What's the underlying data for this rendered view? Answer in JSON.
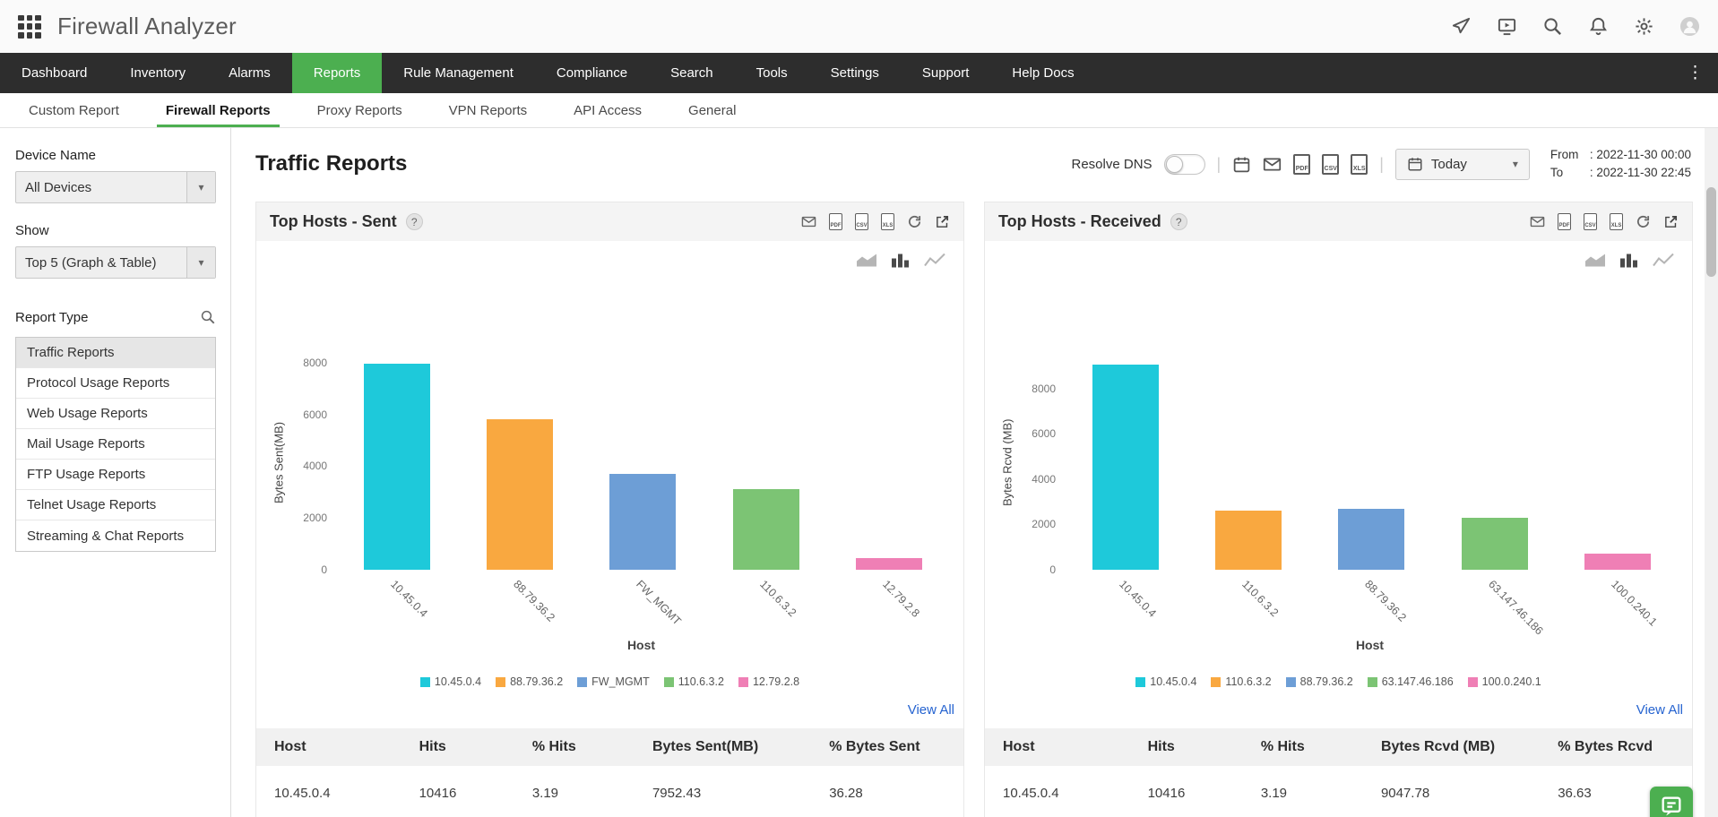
{
  "app": {
    "title": "Firewall Analyzer"
  },
  "icons": {
    "caret_down": "▾",
    "kebab": "⋮",
    "help": "?",
    "pdf_label": "PDF",
    "csv_label": "CSV",
    "xls_label": "XLS"
  },
  "nav": {
    "items": [
      {
        "label": "Dashboard",
        "active": false
      },
      {
        "label": "Inventory",
        "active": false
      },
      {
        "label": "Alarms",
        "active": false
      },
      {
        "label": "Reports",
        "active": true
      },
      {
        "label": "Rule Management",
        "active": false
      },
      {
        "label": "Compliance",
        "active": false
      },
      {
        "label": "Search",
        "active": false
      },
      {
        "label": "Tools",
        "active": false
      },
      {
        "label": "Settings",
        "active": false
      },
      {
        "label": "Support",
        "active": false
      },
      {
        "label": "Help Docs",
        "active": false
      }
    ]
  },
  "subnav": {
    "items": [
      {
        "label": "Custom Report",
        "active": false
      },
      {
        "label": "Firewall Reports",
        "active": true
      },
      {
        "label": "Proxy Reports",
        "active": false
      },
      {
        "label": "VPN Reports",
        "active": false
      },
      {
        "label": "API Access",
        "active": false
      },
      {
        "label": "General",
        "active": false
      }
    ]
  },
  "sidebar": {
    "device_label": "Device Name",
    "device_value": "All Devices",
    "show_label": "Show",
    "show_value": "Top 5 (Graph & Table)",
    "report_type_label": "Report Type",
    "report_types": [
      {
        "label": "Traffic Reports",
        "active": true
      },
      {
        "label": "Protocol Usage Reports",
        "active": false
      },
      {
        "label": "Web Usage Reports",
        "active": false
      },
      {
        "label": "Mail Usage Reports",
        "active": false
      },
      {
        "label": "FTP Usage Reports",
        "active": false
      },
      {
        "label": "Telnet Usage Reports",
        "active": false
      },
      {
        "label": "Streaming & Chat Reports",
        "active": false
      }
    ]
  },
  "toolbar": {
    "page_title": "Traffic Reports",
    "resolve_dns_label": "Resolve DNS",
    "period_value": "Today",
    "range": {
      "from_label": "From",
      "from_value": ": 2022-11-30 00:00",
      "to_label": "To",
      "to_value": ": 2022-11-30 22:45"
    }
  },
  "chart_data": [
    {
      "type": "bar",
      "title": "Top Hosts - Sent",
      "categories": [
        "10.45.0.4",
        "88.79.36.2",
        "FW_MGMT",
        "110.6.3.2",
        "12.79.2.8"
      ],
      "values": [
        7952.43,
        5800,
        3700,
        3100,
        450
      ],
      "colors": [
        "#1ec9da",
        "#f9a840",
        "#6d9ed6",
        "#7cc474",
        "#ef7fb5"
      ],
      "xlabel": "Host",
      "ylabel": "Bytes Sent(MB)",
      "ymax": 8300,
      "yticks": [
        0,
        2000,
        4000,
        6000,
        8000
      ],
      "legend": [
        "10.45.0.4",
        "88.79.36.2",
        "FW_MGMT",
        "110.6.3.2",
        "12.79.2.8"
      ],
      "legend_position": "bottom",
      "grid": false,
      "view_all_label": "View All",
      "table": {
        "headers": [
          "Host",
          "Hits",
          "% Hits",
          "Bytes Sent(MB)",
          "% Bytes Sent"
        ],
        "rows": [
          [
            "10.45.0.4",
            "10416",
            "3.19",
            "7952.43",
            "36.28"
          ]
        ]
      }
    },
    {
      "type": "bar",
      "title": "Top Hosts - Received",
      "categories": [
        "10.45.0.4",
        "110.6.3.2",
        "88.79.36.2",
        "63.147.46.186",
        "100.0.240.1"
      ],
      "values": [
        9047.78,
        2600,
        2700,
        2300,
        700
      ],
      "colors": [
        "#1ec9da",
        "#f9a840",
        "#6d9ed6",
        "#7cc474",
        "#ef7fb5"
      ],
      "xlabel": "Host",
      "ylabel": "Bytes Rcvd (MB)",
      "ymax": 9500,
      "yticks": [
        0,
        2000,
        4000,
        6000,
        8000
      ],
      "legend": [
        "10.45.0.4",
        "110.6.3.2",
        "88.79.36.2",
        "63.147.46.186",
        "100.0.240.1"
      ],
      "legend_position": "bottom",
      "grid": false,
      "view_all_label": "View All",
      "table": {
        "headers": [
          "Host",
          "Hits",
          "% Hits",
          "Bytes Rcvd (MB)",
          "% Bytes Rcvd"
        ],
        "rows": [
          [
            "10.45.0.4",
            "10416",
            "3.19",
            "9047.78",
            "36.63"
          ]
        ]
      }
    }
  ]
}
